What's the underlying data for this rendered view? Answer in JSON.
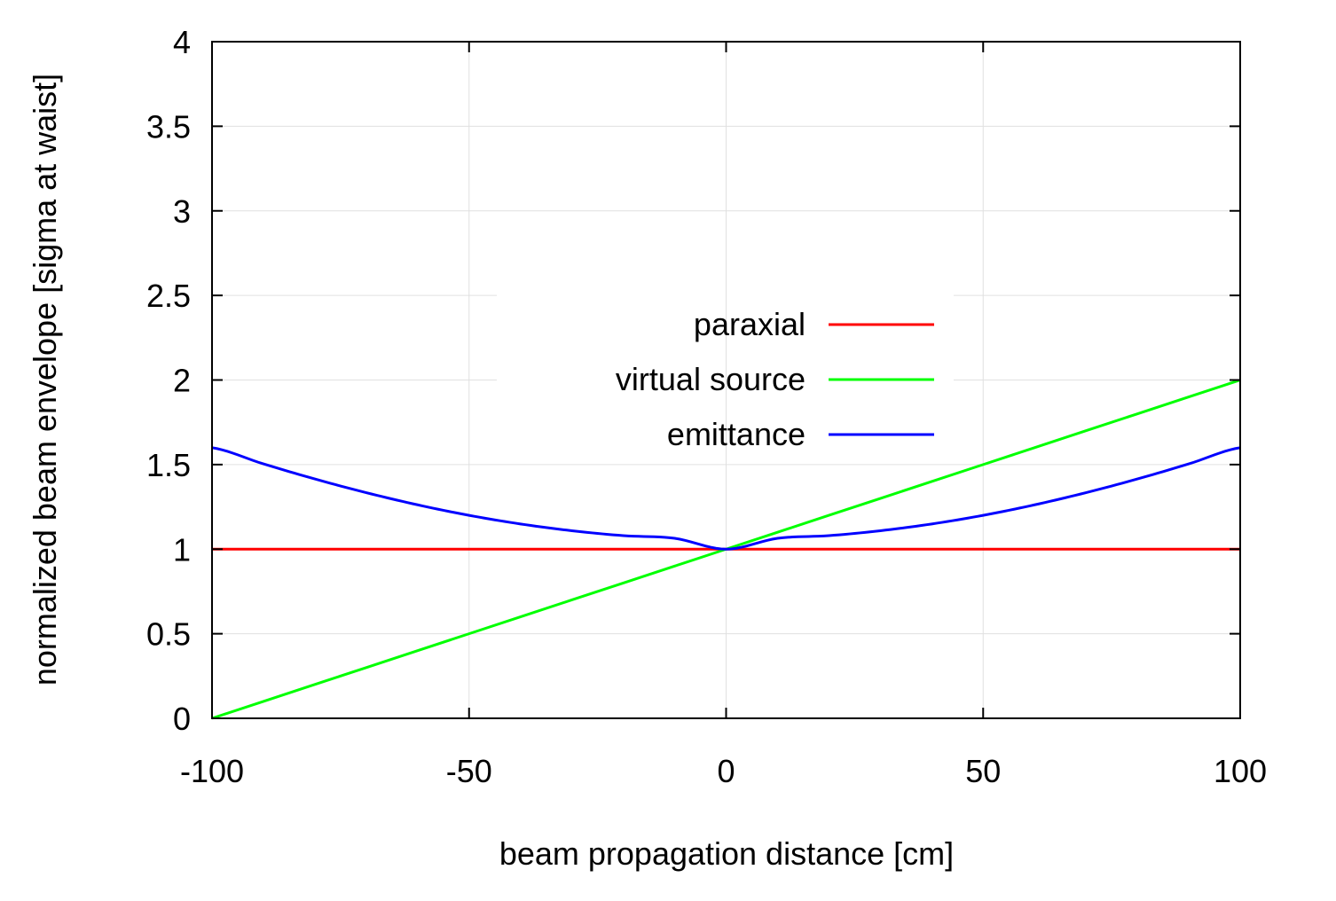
{
  "chart_data": {
    "type": "line",
    "title": "",
    "xlabel": "beam propagation distance [cm]",
    "ylabel": "normalized beam envelope [sigma at waist]",
    "xlim": [
      -100,
      100
    ],
    "ylim": [
      0,
      4
    ],
    "xticks": [
      "-100",
      "-50",
      "0",
      "50",
      "100"
    ],
    "yticks": [
      "0",
      "0.5",
      "1",
      "1.5",
      "2",
      "2.5",
      "3",
      "3.5",
      "4"
    ],
    "grid": true,
    "legend_position": "center",
    "x": [
      -100,
      -90,
      -80,
      -70,
      -60,
      -50,
      -40,
      -30,
      -20,
      -10,
      0,
      10,
      20,
      30,
      40,
      50,
      60,
      70,
      80,
      90,
      100
    ],
    "series": [
      {
        "name": "paraxial",
        "color": "#ff0000",
        "values": [
          1,
          1,
          1,
          1,
          1,
          1,
          1,
          1,
          1,
          1,
          1,
          1,
          1,
          1,
          1,
          1,
          1,
          1,
          1,
          1,
          1
        ]
      },
      {
        "name": "virtual source",
        "color": "#00ff00",
        "values": [
          0,
          0.1,
          0.2,
          0.3,
          0.4,
          0.5,
          0.6,
          0.7,
          0.8,
          0.9,
          1,
          1.1,
          1.2,
          1.3,
          1.4,
          1.5,
          1.6,
          1.7,
          1.8,
          1.9,
          2
        ]
      },
      {
        "name": "emittance",
        "color": "#0000ff",
        "values": [
          1.6,
          1.504,
          1.415,
          1.334,
          1.262,
          1.2,
          1.149,
          1.109,
          1.08,
          1.064,
          1.0,
          1.064,
          1.08,
          1.109,
          1.149,
          1.2,
          1.262,
          1.334,
          1.415,
          1.504,
          1.6
        ]
      }
    ]
  }
}
